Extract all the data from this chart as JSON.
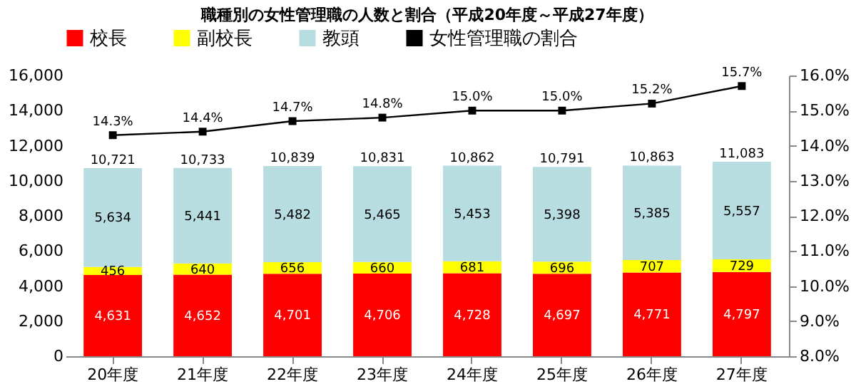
{
  "chart_data": {
    "type": "bar",
    "title": "職種別の女性管理職の人数と割合（平成20年度～平成27年度）",
    "categories": [
      "20年度",
      "21年度",
      "22年度",
      "23年度",
      "24年度",
      "25年度",
      "26年度",
      "27年度"
    ],
    "stacked": true,
    "series": [
      {
        "name": "校長",
        "color": "#ff0000",
        "values": [
          4631,
          4652,
          4701,
          4706,
          4728,
          4697,
          4771,
          4797
        ],
        "value_labels": [
          "4,631",
          "4,652",
          "4,701",
          "4,706",
          "4,728",
          "4,697",
          "4,771",
          "4,797"
        ]
      },
      {
        "name": "副校長",
        "color": "#ffff00",
        "values": [
          456,
          640,
          656,
          660,
          681,
          696,
          707,
          729
        ],
        "value_labels": [
          "456",
          "640",
          "656",
          "660",
          "681",
          "696",
          "707",
          "729"
        ]
      },
      {
        "name": "教頭",
        "color": "#b7dde0",
        "values": [
          5634,
          5441,
          5482,
          5465,
          5453,
          5398,
          5385,
          5557
        ],
        "value_labels": [
          "5,634",
          "5,441",
          "5,482",
          "5,465",
          "5,453",
          "5,398",
          "5,385",
          "5,557"
        ]
      },
      {
        "name": "女性管理職の割合",
        "type": "line",
        "axis": "y2",
        "color": "#000000",
        "marker": "square",
        "values": [
          14.3,
          14.4,
          14.7,
          14.8,
          15.0,
          15.0,
          15.2,
          15.7
        ],
        "value_labels": [
          "14.3%",
          "14.4%",
          "14.7%",
          "14.8%",
          "15.0%",
          "15.0%",
          "15.2%",
          "15.7%"
        ]
      }
    ],
    "totals": [
      "10,721",
      "10,733",
      "10,839",
      "10,831",
      "10,862",
      "10,791",
      "10,863",
      "11,083"
    ],
    "ylim": [
      0,
      16000
    ],
    "yticks": [
      {
        "value": 0,
        "label": "0"
      },
      {
        "value": 2000,
        "label": "2,000"
      },
      {
        "value": 4000,
        "label": "4,000"
      },
      {
        "value": 6000,
        "label": "6,000"
      },
      {
        "value": 8000,
        "label": "8,000"
      },
      {
        "value": 10000,
        "label": "10,000"
      },
      {
        "value": 12000,
        "label": "12,000"
      },
      {
        "value": 14000,
        "label": "14,000"
      },
      {
        "value": 16000,
        "label": "16,000"
      }
    ],
    "y2lim": [
      8,
      16
    ],
    "y2ticks": [
      {
        "value": 8,
        "label": "8.0%"
      },
      {
        "value": 9,
        "label": "9.0%"
      },
      {
        "value": 10,
        "label": "10.0%"
      },
      {
        "value": 11,
        "label": "11.0%"
      },
      {
        "value": 12,
        "label": "12.0%"
      },
      {
        "value": 13,
        "label": "13.0%"
      },
      {
        "value": 14,
        "label": "14.0%"
      },
      {
        "value": 15,
        "label": "15.0%"
      },
      {
        "value": 16,
        "label": "16.0%"
      }
    ],
    "grid": false,
    "legend": "top"
  }
}
